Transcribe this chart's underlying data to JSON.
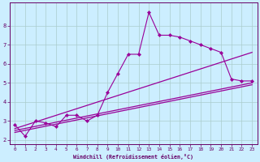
{
  "xlabel": "Windchill (Refroidissement éolien,°C)",
  "background_color": "#cceeff",
  "grid_color": "#aacccc",
  "line_color": "#990099",
  "xlim": [
    -0.5,
    23.5
  ],
  "ylim": [
    1.8,
    9.2
  ],
  "xticks": [
    0,
    1,
    2,
    3,
    4,
    5,
    6,
    7,
    8,
    9,
    10,
    11,
    12,
    13,
    14,
    15,
    16,
    17,
    18,
    19,
    20,
    21,
    22,
    23
  ],
  "yticks": [
    2,
    3,
    4,
    5,
    6,
    7,
    8
  ],
  "jagged_x": [
    0,
    1,
    2,
    3,
    4,
    5,
    6,
    7,
    8,
    9,
    10,
    11,
    12,
    13,
    14,
    15,
    16,
    17,
    18,
    19,
    20,
    21,
    22,
    23
  ],
  "jagged_y": [
    2.8,
    2.2,
    3.0,
    2.9,
    2.7,
    3.3,
    3.3,
    3.0,
    3.3,
    4.5,
    5.5,
    6.5,
    6.5,
    8.7,
    7.5,
    7.5,
    7.4,
    7.2,
    7.0,
    6.8,
    6.6,
    5.2,
    5.1,
    5.1
  ],
  "line1_x": [
    0,
    23
  ],
  "line1_y": [
    2.6,
    6.6
  ],
  "line2_x": [
    0,
    23
  ],
  "line2_y": [
    2.5,
    5.0
  ],
  "line3_x": [
    0,
    23
  ],
  "line3_y": [
    2.4,
    4.9
  ]
}
